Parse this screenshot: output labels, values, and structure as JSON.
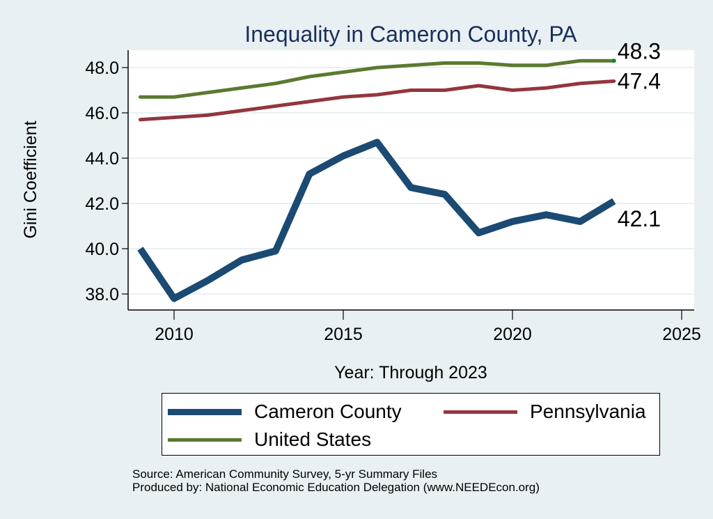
{
  "chart_data": {
    "type": "line",
    "title": "Inequality in Cameron County, PA",
    "xlabel": "Year: Through 2023",
    "ylabel": "Gini Coefficient",
    "xlim": [
      2008.7,
      2025.4
    ],
    "ylim": [
      37.3,
      48.8
    ],
    "xticks": [
      2010,
      2015,
      2020,
      2025
    ],
    "yticks": [
      38.0,
      40.0,
      42.0,
      44.0,
      46.0,
      48.0
    ],
    "ytick_labels": [
      "38.0",
      "40.0",
      "42.0",
      "44.0",
      "46.0",
      "48.0"
    ],
    "grid": "horizontal",
    "x": [
      2009,
      2010,
      2011,
      2012,
      2013,
      2014,
      2015,
      2016,
      2017,
      2018,
      2019,
      2020,
      2021,
      2022,
      2023
    ],
    "series": [
      {
        "name": "Cameron County",
        "color": "#1b4a72",
        "width": "thick",
        "values": [
          40.0,
          37.8,
          38.6,
          39.5,
          39.9,
          43.3,
          44.1,
          44.7,
          42.7,
          42.4,
          40.7,
          41.2,
          41.5,
          41.2,
          42.1
        ],
        "end_label": "42.1"
      },
      {
        "name": "Pennsylvania",
        "color": "#94353e",
        "width": "medium",
        "values": [
          45.7,
          45.8,
          45.9,
          46.1,
          46.3,
          46.5,
          46.7,
          46.8,
          47.0,
          47.0,
          47.2,
          47.0,
          47.1,
          47.3,
          47.4
        ],
        "end_label": "47.4"
      },
      {
        "name": "United States",
        "color": "#5a7a30",
        "width": "medium",
        "values": [
          46.7,
          46.7,
          46.9,
          47.1,
          47.3,
          47.6,
          47.8,
          48.0,
          48.1,
          48.2,
          48.2,
          48.1,
          48.1,
          48.3,
          48.3
        ],
        "end_label": "48.3",
        "end_marker_color": "#0a8a1a"
      }
    ],
    "legend_position": "bottom",
    "legend_entries": [
      "Cameron County",
      "Pennsylvania",
      "United States"
    ]
  },
  "footer": {
    "source": "Source: American Community Survey, 5-yr Summary Files",
    "produced_by": "Produced by: National Economic Education Delegation (www.NEEDEcon.org)"
  }
}
